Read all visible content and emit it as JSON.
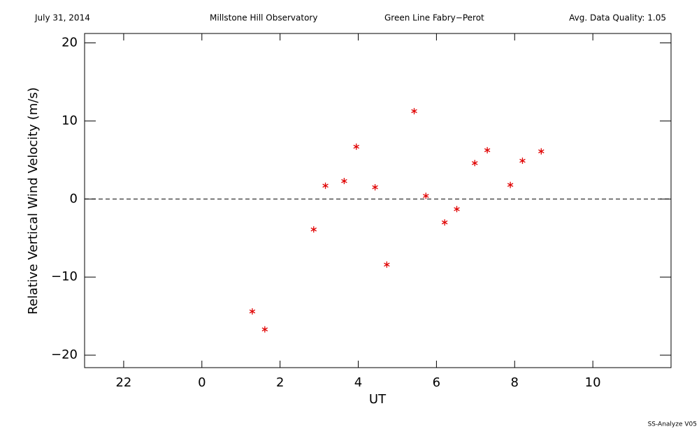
{
  "chart_data": {
    "type": "scatter",
    "header": [
      "July 31, 2014",
      "Millstone Hill Observatory",
      "Green Line Fabry−Perot",
      "Avg. Data Quality: 1.05"
    ],
    "footer": "SS-Analyze V05",
    "x_label": "UT",
    "y_label": "Relative Vertical Wind Velocity (m/s)",
    "x": [
      1.29,
      1.61,
      2.86,
      3.16,
      3.64,
      3.95,
      4.43,
      4.73,
      5.43,
      5.73,
      6.21,
      6.52,
      6.98,
      7.3,
      7.89,
      8.2,
      8.68
    ],
    "values": [
      -14.4,
      -16.7,
      -3.9,
      1.7,
      2.3,
      6.7,
      1.5,
      -8.4,
      11.25,
      0.4,
      -3.0,
      -1.3,
      4.6,
      6.25,
      1.8,
      4.9,
      6.1
    ],
    "color": "#e00000",
    "xlim": [
      -3,
      12
    ],
    "xticks": [
      {
        "value": -2,
        "label": "22"
      },
      0,
      2,
      4,
      6,
      8,
      10
    ],
    "ylim": [
      -21.6,
      21.2
    ],
    "yticks": [
      {
        "value": -20,
        "label": "−20"
      },
      {
        "value": -10,
        "label": "−10"
      },
      0,
      10,
      20
    ],
    "reference_line": 0
  }
}
